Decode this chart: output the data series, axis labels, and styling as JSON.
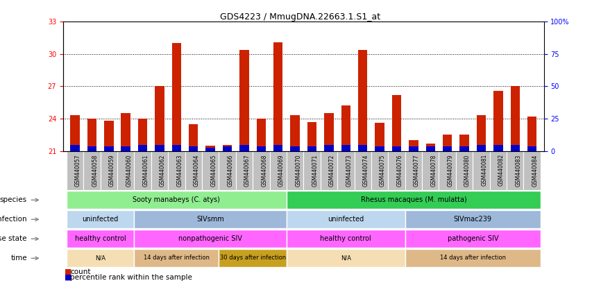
{
  "title": "GDS4223 / MmugDNA.22663.1.S1_at",
  "samples": [
    "GSM440057",
    "GSM440058",
    "GSM440059",
    "GSM440060",
    "GSM440061",
    "GSM440062",
    "GSM440063",
    "GSM440064",
    "GSM440065",
    "GSM440066",
    "GSM440067",
    "GSM440068",
    "GSM440069",
    "GSM440070",
    "GSM440071",
    "GSM440072",
    "GSM440073",
    "GSM440074",
    "GSM440075",
    "GSM440076",
    "GSM440077",
    "GSM440078",
    "GSM440079",
    "GSM440080",
    "GSM440081",
    "GSM440082",
    "GSM440083",
    "GSM440084"
  ],
  "red_values": [
    24.3,
    24.0,
    23.8,
    24.5,
    24.0,
    27.0,
    31.0,
    23.5,
    21.5,
    21.4,
    30.4,
    24.0,
    31.1,
    24.3,
    23.7,
    24.5,
    25.2,
    30.4,
    23.6,
    26.2,
    22.0,
    21.4,
    22.5,
    22.5,
    24.3,
    26.6,
    27.0,
    24.2
  ],
  "blue_values": [
    0.55,
    0.45,
    0.45,
    0.45,
    0.55,
    0.55,
    0.55,
    0.45,
    0.3,
    0.55,
    0.55,
    0.45,
    0.55,
    0.45,
    0.45,
    0.55,
    0.55,
    0.55,
    0.45,
    0.45,
    0.45,
    0.7,
    0.45,
    0.45,
    0.55,
    0.55,
    0.55,
    0.45
  ],
  "y_min": 21,
  "y_max": 33,
  "left_yticks": [
    21,
    24,
    27,
    30,
    33
  ],
  "right_ytick_labels": [
    "0",
    "25",
    "50",
    "75",
    "100%"
  ],
  "right_ytick_pos": [
    21,
    24,
    27,
    30,
    33
  ],
  "species_groups": [
    {
      "label": "Sooty manabeys (C. atys)",
      "start": 0,
      "end": 13,
      "color": "#90EE90"
    },
    {
      "label": "Rhesus macaques (M. mulatta)",
      "start": 13,
      "end": 28,
      "color": "#33CC55"
    }
  ],
  "infection_groups": [
    {
      "label": "uninfected",
      "start": 0,
      "end": 4,
      "color": "#BDD7EE"
    },
    {
      "label": "SIVsmm",
      "start": 4,
      "end": 13,
      "color": "#9DB8D9"
    },
    {
      "label": "uninfected",
      "start": 13,
      "end": 20,
      "color": "#BDD7EE"
    },
    {
      "label": "SIVmac239",
      "start": 20,
      "end": 28,
      "color": "#9DB8D9"
    }
  ],
  "disease_groups": [
    {
      "label": "healthy control",
      "start": 0,
      "end": 4,
      "color": "#FF66FF"
    },
    {
      "label": "nonpathogenic SIV",
      "start": 4,
      "end": 13,
      "color": "#FF66FF"
    },
    {
      "label": "healthy control",
      "start": 13,
      "end": 20,
      "color": "#FF66FF"
    },
    {
      "label": "pathogenic SIV",
      "start": 20,
      "end": 28,
      "color": "#FF66FF"
    }
  ],
  "time_groups": [
    {
      "label": "N/A",
      "start": 0,
      "end": 4,
      "color": "#F5DEB3"
    },
    {
      "label": "14 days after infection",
      "start": 4,
      "end": 9,
      "color": "#DEB887"
    },
    {
      "label": "30 days after infection",
      "start": 9,
      "end": 13,
      "color": "#C8A020"
    },
    {
      "label": "N/A",
      "start": 13,
      "end": 20,
      "color": "#F5DEB3"
    },
    {
      "label": "14 days after infection",
      "start": 20,
      "end": 28,
      "color": "#DEB887"
    }
  ],
  "bar_color": "#CC2200",
  "blue_color": "#0000CC",
  "xtick_bg": "#C0C0C0"
}
